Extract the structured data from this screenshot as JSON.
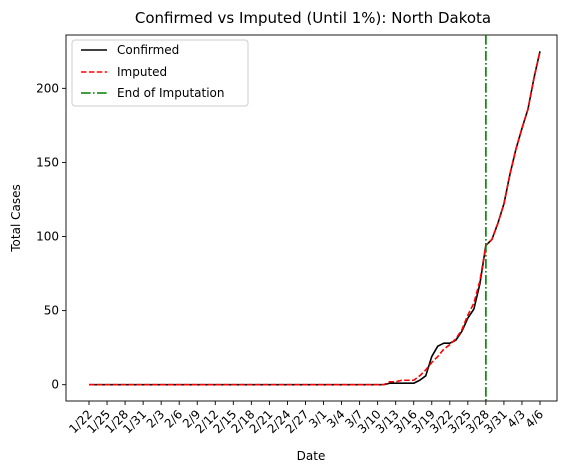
{
  "chart_data": {
    "type": "line",
    "title": "Confirmed vs Imputed (Until 1%): North Dakota",
    "xlabel": "Date",
    "ylabel": "Total Cases",
    "x_ticks": [
      "1/22",
      "1/25",
      "1/28",
      "1/31",
      "2/3",
      "2/6",
      "2/9",
      "2/12",
      "2/15",
      "2/18",
      "2/21",
      "2/24",
      "2/27",
      "3/1",
      "3/4",
      "3/7",
      "3/10",
      "3/13",
      "3/16",
      "3/19",
      "3/22",
      "3/25",
      "3/28",
      "3/31",
      "4/3",
      "4/6"
    ],
    "yticks": [
      0,
      50,
      100,
      150,
      200
    ],
    "ylim": [
      -11,
      236
    ],
    "x": [
      "1/22",
      "1/23",
      "1/24",
      "1/25",
      "1/26",
      "1/27",
      "1/28",
      "1/29",
      "1/30",
      "1/31",
      "2/1",
      "2/2",
      "2/3",
      "2/4",
      "2/5",
      "2/6",
      "2/7",
      "2/8",
      "2/9",
      "2/10",
      "2/11",
      "2/12",
      "2/13",
      "2/14",
      "2/15",
      "2/16",
      "2/17",
      "2/18",
      "2/19",
      "2/20",
      "2/21",
      "2/22",
      "2/23",
      "2/24",
      "2/25",
      "2/26",
      "2/27",
      "2/28",
      "2/29",
      "3/1",
      "3/2",
      "3/3",
      "3/4",
      "3/5",
      "3/6",
      "3/7",
      "3/8",
      "3/9",
      "3/10",
      "3/11",
      "3/12",
      "3/13",
      "3/14",
      "3/15",
      "3/16",
      "3/17",
      "3/18",
      "3/19",
      "3/20",
      "3/21",
      "3/22",
      "3/23",
      "3/24",
      "3/25",
      "3/26",
      "3/27",
      "3/28",
      "3/29",
      "3/30",
      "3/31",
      "4/1",
      "4/2",
      "4/3",
      "4/4",
      "4/5",
      "4/6"
    ],
    "series": [
      {
        "name": "Confirmed",
        "color": "#000000",
        "style": "solid",
        "values": [
          0,
          0,
          0,
          0,
          0,
          0,
          0,
          0,
          0,
          0,
          0,
          0,
          0,
          0,
          0,
          0,
          0,
          0,
          0,
          0,
          0,
          0,
          0,
          0,
          0,
          0,
          0,
          0,
          0,
          0,
          0,
          0,
          0,
          0,
          0,
          0,
          0,
          0,
          0,
          0,
          0,
          0,
          0,
          0,
          0,
          0,
          0,
          0,
          0,
          0,
          1,
          1,
          1,
          1,
          1,
          3,
          6,
          19,
          26,
          28,
          28,
          30,
          36,
          45,
          51,
          68,
          94,
          98,
          109,
          122,
          142,
          159,
          173,
          186,
          207,
          225
        ]
      },
      {
        "name": "Imputed",
        "color": "#ff0000",
        "style": "dashed",
        "values": [
          0,
          0,
          0,
          0,
          0,
          0,
          0,
          0,
          0,
          0,
          0,
          0,
          0,
          0,
          0,
          0,
          0,
          0,
          0,
          0,
          0,
          0,
          0,
          0,
          0,
          0,
          0,
          0,
          0,
          0,
          0,
          0,
          0,
          0,
          0,
          0,
          0,
          0,
          0,
          0,
          0,
          0,
          0,
          0,
          0,
          0,
          0,
          0,
          0,
          0,
          2,
          2,
          3,
          3,
          3,
          6,
          10,
          15,
          19,
          24,
          27,
          31,
          37,
          47,
          55,
          70,
          94,
          98,
          109,
          122,
          142,
          159,
          173,
          186,
          207,
          225
        ]
      }
    ],
    "vline": {
      "name": "End of Imputation",
      "x": "3/28",
      "color": "#008000",
      "style": "dashdot"
    },
    "legend": "top-left"
  }
}
